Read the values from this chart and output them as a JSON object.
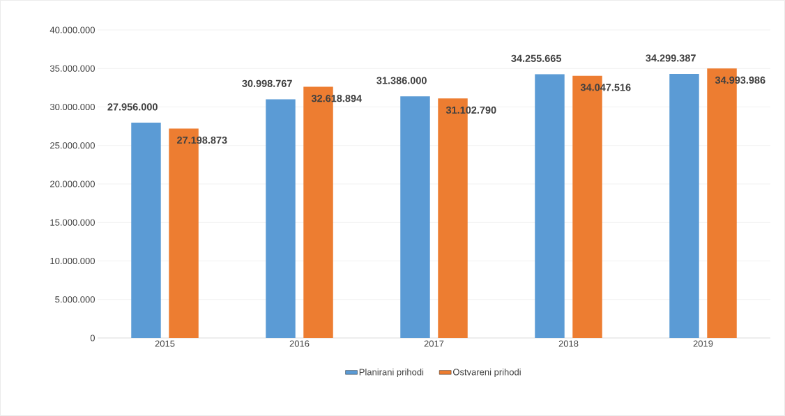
{
  "chart_data": {
    "type": "bar",
    "categories": [
      "2015",
      "2016",
      "2017",
      "2018",
      "2019"
    ],
    "series": [
      {
        "name": "Planirani prihodi",
        "color": "#5b9bd5",
        "values": [
          27956000,
          30998767,
          31386000,
          34255665,
          34299387
        ],
        "value_labels": [
          "27.956.000",
          "30.998.767",
          "31.386.000",
          "34.255.665",
          "34.299.387"
        ]
      },
      {
        "name": "Ostvareni prihodi",
        "color": "#ed7d31",
        "values": [
          27198873,
          32618894,
          31102790,
          34047516,
          34993986
        ],
        "value_labels": [
          "27.198.873",
          "32.618.894",
          "31.102.790",
          "34.047.516",
          "34.993.986"
        ]
      }
    ],
    "ylim": [
      0,
      40000000
    ],
    "yticks": [
      0,
      {
        "value": 5000000,
        "label": "5.000.000"
      },
      {
        "value": 10000000,
        "label": "10.000.000"
      },
      {
        "value": 15000000,
        "label": "15.000.000"
      },
      {
        "value": 20000000,
        "label": "20.000.000"
      },
      {
        "value": 25000000,
        "label": "25.000.000"
      },
      {
        "value": 30000000,
        "label": "30.000.000"
      },
      {
        "value": 35000000,
        "label": "35.000.000"
      },
      {
        "value": 40000000,
        "label": "40.000.000"
      }
    ],
    "grid": "y",
    "legend": "bottom"
  }
}
